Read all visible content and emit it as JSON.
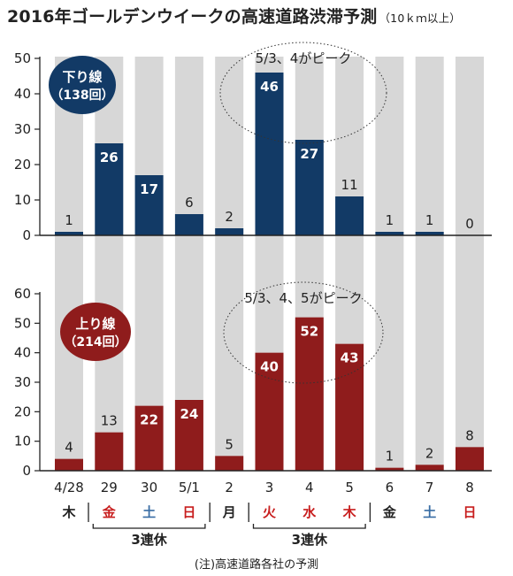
{
  "title": "2016年ゴールデンウイークの高速道路渋滞予測",
  "title_unit": "（10ｋｍ以上）",
  "note": "(注)高速道路各社の予測",
  "colors": {
    "down": "#123a66",
    "up": "#8f1c1c",
    "band": "#d7d7d7",
    "weekday": "#222222",
    "saturday": "#3a6ea5",
    "holiday": "#c81e1e"
  },
  "chart_data": [
    {
      "type": "bar",
      "title": "下り線（138回）",
      "badge_lines": [
        "下り線",
        "（138回）"
      ],
      "categories": [
        "4/28",
        "29",
        "30",
        "5/1",
        "2",
        "3",
        "4",
        "5",
        "6",
        "7",
        "8"
      ],
      "values": [
        1,
        26,
        17,
        6,
        2,
        46,
        27,
        11,
        1,
        1,
        0
      ],
      "ylim": [
        0,
        50
      ],
      "yticks": [
        0,
        10,
        20,
        30,
        40,
        50
      ],
      "annotation": "5/3、4がピーク"
    },
    {
      "type": "bar",
      "title": "上り線（214回）",
      "badge_lines": [
        "上り線",
        "（214回）"
      ],
      "categories": [
        "4/28",
        "29",
        "30",
        "5/1",
        "2",
        "3",
        "4",
        "5",
        "6",
        "7",
        "8"
      ],
      "values": [
        4,
        13,
        22,
        24,
        5,
        40,
        52,
        43,
        1,
        2,
        8
      ],
      "ylim": [
        0,
        60
      ],
      "yticks": [
        0,
        10,
        20,
        30,
        40,
        50,
        60
      ],
      "annotation": "5/3、4、5がピーク"
    }
  ],
  "dates": [
    "4/28",
    "29",
    "30",
    "5/1",
    "2",
    "3",
    "4",
    "5",
    "6",
    "7",
    "8"
  ],
  "weekdays": [
    {
      "label": "木",
      "kind": "weekday"
    },
    {
      "label": "金",
      "kind": "holiday"
    },
    {
      "label": "土",
      "kind": "saturday"
    },
    {
      "label": "日",
      "kind": "holiday"
    },
    {
      "label": "月",
      "kind": "weekday"
    },
    {
      "label": "火",
      "kind": "holiday"
    },
    {
      "label": "水",
      "kind": "holiday"
    },
    {
      "label": "木",
      "kind": "holiday"
    },
    {
      "label": "金",
      "kind": "weekday"
    },
    {
      "label": "土",
      "kind": "saturday"
    },
    {
      "label": "日",
      "kind": "holiday"
    }
  ],
  "renkyu": [
    {
      "label": "3連休",
      "from": 1,
      "to": 3
    },
    {
      "label": "3連休",
      "from": 5,
      "to": 7
    }
  ]
}
